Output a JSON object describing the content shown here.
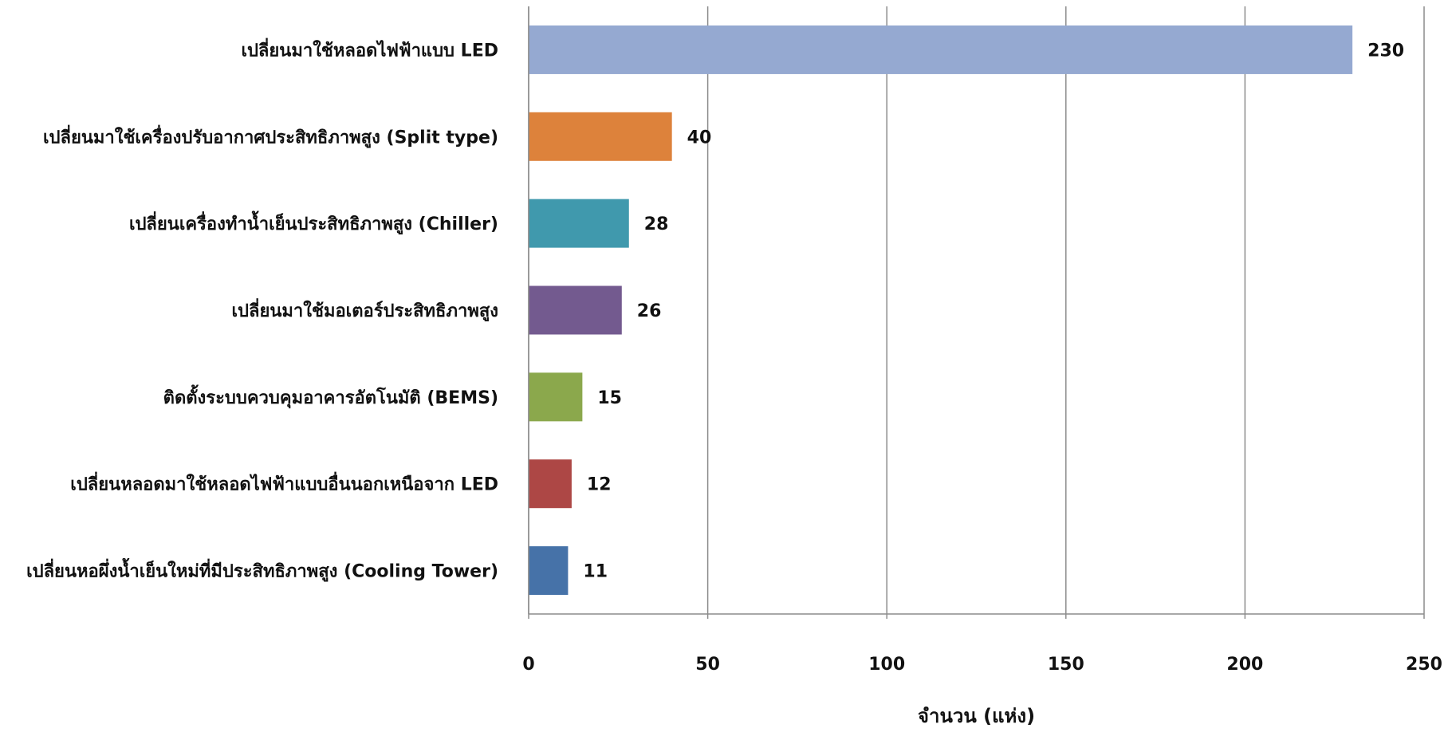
{
  "chart_data": {
    "type": "bar",
    "orientation": "horizontal",
    "categories": [
      "เปลี่ยนมาใช้หลอดไฟฟ้าแบบ LED",
      "เปลี่ยนมาใช้เครื่องปรับอากาศประสิทธิภาพสูง (Split type)",
      "เปลี่ยนเครื่องทำน้ำเย็นประสิทธิภาพสูง (Chiller)",
      "เปลี่ยนมาใช้มอเตอร์ประสิทธิภาพสูง",
      "ติดตั้งระบบควบคุมอาคารอัตโนมัติ (BEMS)",
      "เปลี่ยนหลอดมาใช้หลอดไฟฟ้าแบบอื่นนอกเหนือจาก LED",
      "เปลี่ยนหอผึ่งน้ำเย็นใหม่ที่มีประสิทธิภาพสูง (Cooling Tower)"
    ],
    "values": [
      230,
      40,
      28,
      26,
      15,
      12,
      11
    ],
    "colors": [
      "#95A9D1",
      "#DD823B",
      "#4099AD",
      "#735A8F",
      "#8BA84C",
      "#AD4745",
      "#4672A8"
    ],
    "xlabel": "จำนวน (แห่ง)",
    "xlim": [
      0,
      250
    ],
    "xticks": [
      0,
      50,
      100,
      150,
      200,
      250
    ],
    "grid": "vertical",
    "legend": "none",
    "data_labels": true
  }
}
